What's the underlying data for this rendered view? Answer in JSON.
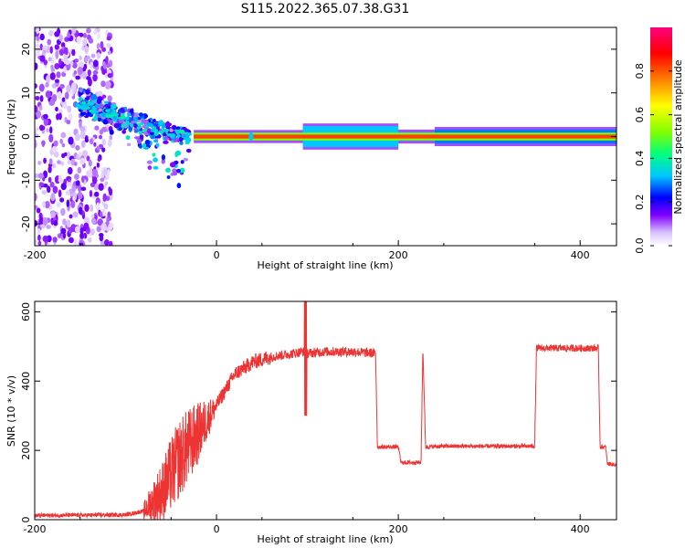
{
  "title": "S115.2022.365.07.38.G31",
  "chart_data": [
    {
      "type": "heatmap",
      "xlabel": "Height of straight line (km)",
      "ylabel": "Frequency (Hz)",
      "xlim": [
        -200,
        440
      ],
      "ylim": [
        -25,
        25
      ],
      "x_ticks": [
        -200,
        0,
        200,
        400
      ],
      "y_ticks": [
        -20,
        -10,
        0,
        10,
        20
      ],
      "colorbar": {
        "label": "Normalized spectral amplitude",
        "range": [
          0,
          1
        ],
        "ticks": [
          0.0,
          0.2,
          0.4,
          0.6,
          0.8
        ],
        "tick_labels": [
          "0.0",
          "0.2",
          "0.4",
          "0.6",
          "0.8"
        ],
        "colormap": [
          "#ffffff",
          "#d9c2ff",
          "#8000ff",
          "#0000ff",
          "#00c8ff",
          "#00ff80",
          "#80ff00",
          "#ffff00",
          "#ff8000",
          "#ff0000",
          "#ff0080"
        ]
      },
      "carrier_line": {
        "frequency": 0,
        "x_start": -25,
        "x_end": 440,
        "amplitude": 0.85
      },
      "notes_visible": "scattered low-amplitude noise from -200 to -115 km; drifting tone from +8 Hz near -150 km to 0 Hz near -30 km"
    },
    {
      "type": "line",
      "xlabel": "Height of straight line (km)",
      "ylabel": "SNR (10 * v/v)",
      "xlim": [
        -200,
        440
      ],
      "ylim": [
        0,
        630
      ],
      "x_ticks": [
        -200,
        0,
        200,
        400
      ],
      "y_ticks": [
        0,
        200,
        400,
        600
      ],
      "color": "#ee3333",
      "series": [
        {
          "x": [
            -200,
            -150,
            -100,
            -80,
            -60,
            -40,
            -20,
            0,
            20,
            40,
            60,
            80,
            95,
            100,
            120,
            150,
            175,
            177,
            200,
            203,
            225,
            227,
            230,
            250,
            300,
            350,
            352,
            380,
            420,
            422,
            428,
            430,
            440
          ],
          "y": [
            12,
            13,
            14,
            25,
            80,
            180,
            250,
            330,
            420,
            455,
            470,
            478,
            485,
            480,
            485,
            485,
            480,
            210,
            210,
            165,
            165,
            495,
            210,
            212,
            212,
            212,
            495,
            495,
            495,
            210,
            210,
            162,
            158
          ]
        }
      ]
    }
  ]
}
